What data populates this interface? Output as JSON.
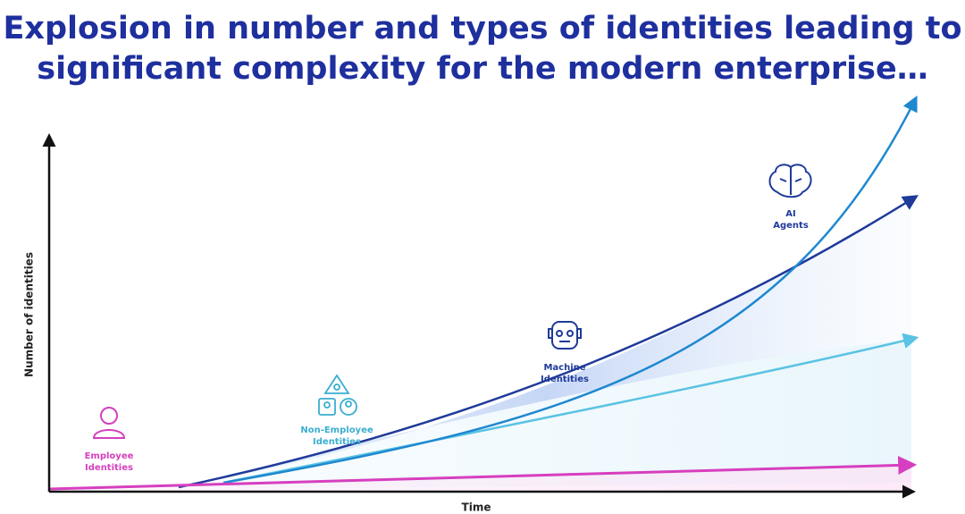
{
  "title": {
    "lines": [
      "Explosion in number and types of identities leading to",
      "significant complexity for the modern enterprise…"
    ]
  },
  "axes": {
    "y_label": "Number of identities",
    "x_label": "Time"
  },
  "nodes": [
    {
      "lines": [
        "Employee",
        "Identities"
      ]
    },
    {
      "lines": [
        "Non-Employee",
        "Identities"
      ]
    },
    {
      "lines": [
        "Machine",
        "Identities"
      ]
    },
    {
      "lines": [
        "AI",
        "Agents"
      ]
    }
  ]
}
